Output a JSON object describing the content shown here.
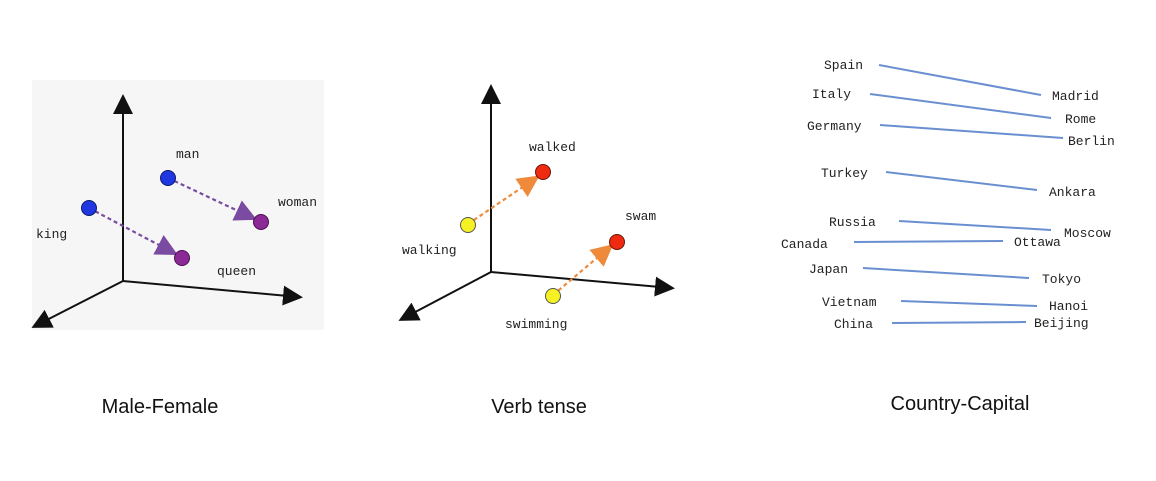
{
  "panels": {
    "male_female": {
      "caption": "Male-Female",
      "words": {
        "man": "man",
        "woman": "woman",
        "king": "king",
        "queen": "queen"
      },
      "colors": {
        "male": "#1f36e0",
        "female": "#8b2a96",
        "arrow": "#7a4ba0"
      }
    },
    "verb_tense": {
      "caption": "Verb tense",
      "words": {
        "walked": "walked",
        "walking": "walking",
        "swam": "swam",
        "swimming": "swimming"
      },
      "colors": {
        "present": "#f5f122",
        "past": "#ee2a10",
        "arrow": "#ee8a3a"
      }
    },
    "country_capital": {
      "caption": "Country-Capital",
      "line_color": "#6a8fd0",
      "pairs": [
        {
          "country": "Spain",
          "capital": "Madrid"
        },
        {
          "country": "Italy",
          "capital": "Rome"
        },
        {
          "country": "Germany",
          "capital": "Berlin"
        },
        {
          "country": "Turkey",
          "capital": "Ankara"
        },
        {
          "country": "Russia",
          "capital": "Moscow"
        },
        {
          "country": "Canada",
          "capital": "Ottawa"
        },
        {
          "country": "Japan",
          "capital": "Tokyo"
        },
        {
          "country": "Vietnam",
          "capital": "Hanoi"
        },
        {
          "country": "China",
          "capital": "Beijing"
        }
      ]
    }
  }
}
